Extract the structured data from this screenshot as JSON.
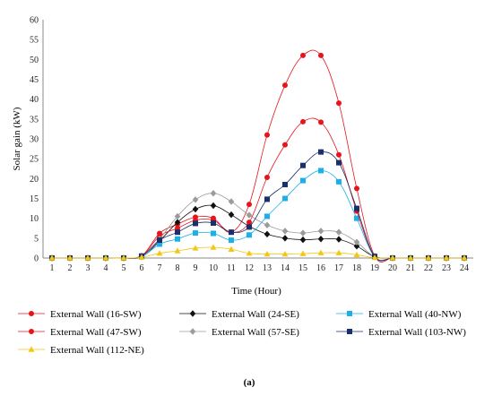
{
  "chart_data": {
    "type": "line",
    "xlabel": "Time (Hour)",
    "ylabel": "Solar gain (kW)",
    "ylim": [
      0,
      60
    ],
    "yticks": [
      0,
      5,
      10,
      15,
      20,
      25,
      30,
      35,
      40,
      45,
      50,
      55,
      60
    ],
    "x": [
      1,
      2,
      3,
      4,
      5,
      6,
      7,
      8,
      9,
      10,
      11,
      12,
      13,
      14,
      15,
      16,
      17,
      18,
      19,
      20,
      21,
      22,
      23,
      24
    ],
    "grid": false,
    "legend_position": "bottom",
    "caption": "(a)",
    "series": [
      {
        "name": "External Wall (16-SW)",
        "color": "#e8141a",
        "marker": "circle",
        "values": [
          0,
          0,
          0,
          0,
          0,
          0.5,
          6.2,
          8.5,
          10.3,
          10,
          6.5,
          13.5,
          31,
          43.5,
          51,
          51,
          39,
          17.5,
          0.5,
          0,
          0,
          0,
          0,
          0
        ]
      },
      {
        "name": "External Wall (24-SE)",
        "color": "#111111",
        "marker": "diamond",
        "values": [
          0,
          0,
          0,
          0,
          0,
          0.3,
          4.3,
          9,
          12.3,
          13.2,
          10.9,
          8,
          6,
          5,
          4.6,
          4.8,
          4.7,
          3,
          0.3,
          0,
          0,
          0,
          0,
          0
        ]
      },
      {
        "name": "External Wall (40-NW)",
        "color": "#1ab0ea",
        "marker": "square",
        "values": [
          0,
          0,
          0,
          0,
          0,
          0.3,
          3.5,
          4.8,
          6.3,
          6.2,
          4.5,
          5.8,
          10.5,
          15,
          19.5,
          22,
          19.2,
          10,
          0.3,
          0,
          0,
          0,
          0,
          0
        ]
      },
      {
        "name": "External Wall (47-SW)",
        "color": "#e8141a",
        "marker": "circle",
        "values": [
          0,
          0,
          0,
          0,
          0,
          0.5,
          5.5,
          7.5,
          9.5,
          9.5,
          6.5,
          9,
          20.3,
          28.5,
          34.3,
          34.2,
          26,
          11.8,
          0.4,
          0,
          0,
          0,
          0,
          0
        ]
      },
      {
        "name": "External Wall (57-SE)",
        "color": "#9b9b9b",
        "marker": "diamond",
        "values": [
          0,
          0,
          0,
          0,
          0,
          0.3,
          4.8,
          10.5,
          14.7,
          16.3,
          14.2,
          10.8,
          8.3,
          6.8,
          6.3,
          6.8,
          6.5,
          4,
          0.3,
          0,
          0,
          0,
          0,
          0
        ]
      },
      {
        "name": "External Wall (103-NW)",
        "color": "#1a2f6b",
        "marker": "square",
        "values": [
          0,
          0,
          0,
          0,
          0,
          0.5,
          4.5,
          6.5,
          8.7,
          8.8,
          6.5,
          7.8,
          14.8,
          18.5,
          23.3,
          26.7,
          24,
          12.5,
          0.4,
          0,
          0,
          0,
          0,
          0
        ]
      },
      {
        "name": "External Wall (112-NE)",
        "color": "#f2c70e",
        "marker": "triangle",
        "values": [
          0,
          0,
          0,
          0,
          0,
          0.2,
          1.2,
          1.8,
          2.5,
          2.7,
          2.2,
          1.2,
          1,
          1,
          1.1,
          1.3,
          1.3,
          0.8,
          0.1,
          0,
          0,
          0,
          0,
          0
        ]
      }
    ]
  }
}
